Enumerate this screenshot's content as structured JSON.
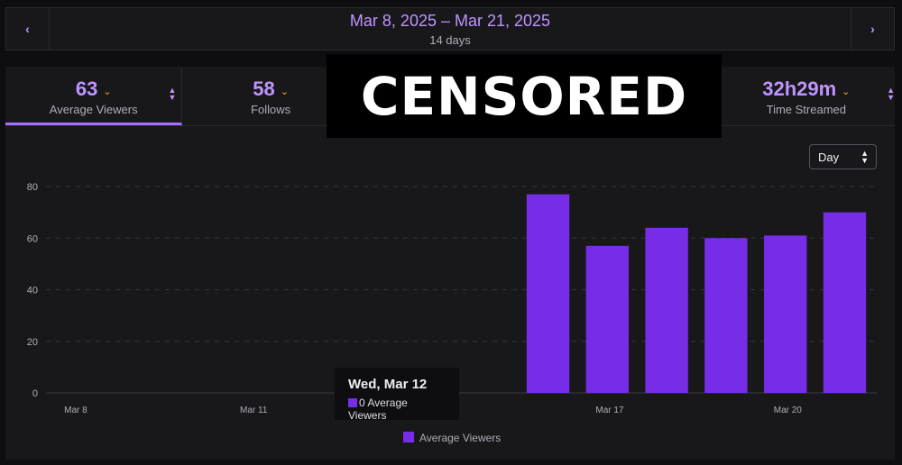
{
  "header": {
    "date_range": "Mar 8, 2025 – Mar 21, 2025",
    "duration": "14 days",
    "prev_icon": "chevron-left-icon",
    "next_icon": "chevron-right-icon"
  },
  "tabs": [
    {
      "value": "63",
      "label": "Average Viewers",
      "active": true
    },
    {
      "value": "58",
      "label": "Follows"
    },
    {
      "value": "32h29m",
      "label": "Time Streamed"
    }
  ],
  "censor_text": "CENSORED",
  "granularity": {
    "selected": "Day"
  },
  "tooltip": {
    "title": "Wed, Mar 12",
    "value_text": "0 Average Viewers"
  },
  "colors": {
    "accent": "#bf94ff",
    "bar": "#772ce8",
    "caret": "#f5a623"
  },
  "chart_data": {
    "type": "bar",
    "categories": [
      "Mar 8",
      "Mar 9",
      "Mar 10",
      "Mar 11",
      "Mar 12",
      "Mar 13",
      "Mar 14",
      "Mar 15",
      "Mar 16",
      "Mar 17",
      "Mar 18",
      "Mar 19",
      "Mar 20",
      "Mar 21"
    ],
    "tick_labels": [
      "Mar 8",
      "Mar 11",
      "Mar 14",
      "Mar 17",
      "Mar 20"
    ],
    "series": [
      {
        "name": "Average Viewers",
        "values": [
          0,
          0,
          0,
          0,
          0,
          0,
          0,
          0,
          77,
          57,
          64,
          60,
          61,
          70
        ]
      }
    ],
    "ylim": [
      0,
      80
    ],
    "yticks": [
      0,
      20,
      40,
      60,
      80
    ],
    "grid": true,
    "legend": "bottom"
  }
}
